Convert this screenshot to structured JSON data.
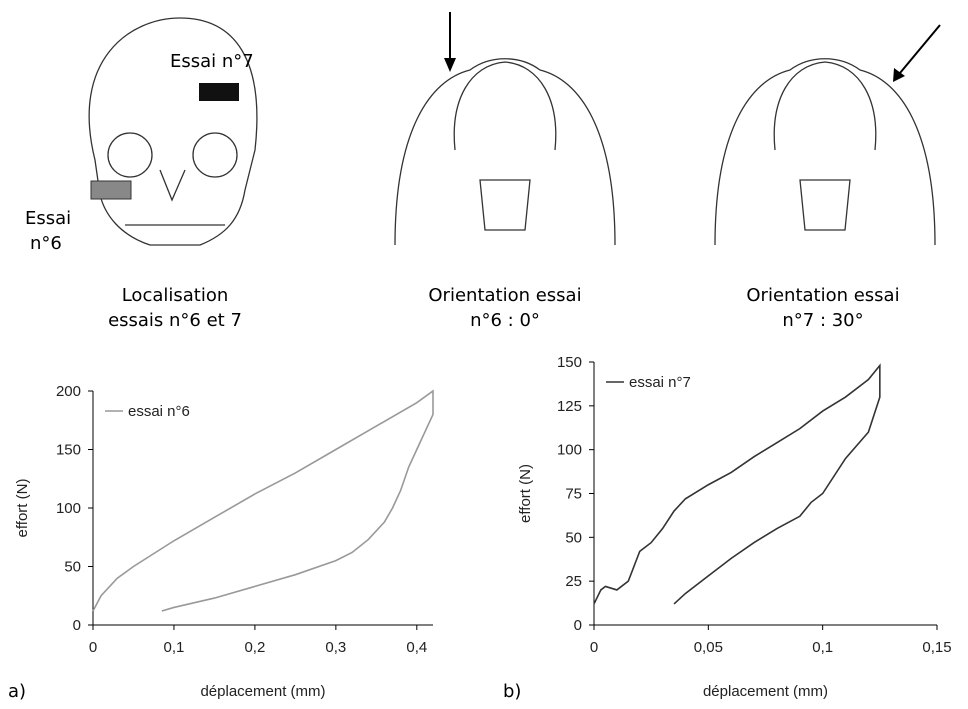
{
  "figure": {
    "labels": {
      "essai7": "Essai n°7",
      "essai6_lines": [
        "Essai",
        "n°6"
      ]
    },
    "captions": [
      [
        "Localisation",
        "essais n°6 et 7"
      ],
      [
        "Orientation essai",
        "n°6 : 0°"
      ],
      [
        "Orientation essai",
        "n°7 : 30°"
      ]
    ]
  },
  "chart_data": [
    {
      "type": "line",
      "panel_label": "a)",
      "x_label": "déplacement (mm)",
      "y_label": "effort (N)",
      "xlim": [
        0,
        0.42
      ],
      "ylim": [
        0,
        200
      ],
      "xticks": [
        0,
        {
          "value": 0.1,
          "label": "0,1"
        },
        {
          "value": 0.2,
          "label": "0,2"
        },
        {
          "value": 0.3,
          "label": "0,3"
        },
        {
          "value": 0.4,
          "label": "0,4"
        }
      ],
      "yticks": [
        0,
        50,
        100,
        150,
        200
      ],
      "series": [
        {
          "name": "essai n°6",
          "color": "#999999",
          "x": [
            0,
            0.01,
            0.03,
            0.05,
            0.1,
            0.15,
            0.2,
            0.25,
            0.3,
            0.35,
            0.4,
            0.42,
            0.42,
            0.41,
            0.4,
            0.39,
            0.38,
            0.37,
            0.36,
            0.34,
            0.32,
            0.3,
            0.25,
            0.2,
            0.15,
            0.1,
            0.085
          ],
          "values": [
            12,
            25,
            40,
            50,
            72,
            92,
            112,
            130,
            150,
            170,
            190,
            200,
            180,
            165,
            150,
            135,
            115,
            100,
            88,
            73,
            62,
            55,
            43,
            33,
            23,
            15,
            12
          ]
        }
      ]
    },
    {
      "type": "line",
      "panel_label": "b)",
      "x_label": "déplacement (mm)",
      "y_label": "effort (N)",
      "xlim": [
        0,
        0.15
      ],
      "ylim": [
        0,
        150
      ],
      "xticks": [
        0,
        {
          "value": 0.05,
          "label": "0,05"
        },
        {
          "value": 0.1,
          "label": "0,1"
        },
        {
          "value": 0.15,
          "label": "0,15"
        }
      ],
      "yticks": [
        0,
        25,
        50,
        75,
        100,
        125,
        150
      ],
      "series": [
        {
          "name": "essai n°7",
          "color": "#333333",
          "x": [
            0,
            0.003,
            0.005,
            0.01,
            0.015,
            0.02,
            0.025,
            0.03,
            0.035,
            0.04,
            0.05,
            0.06,
            0.07,
            0.08,
            0.09,
            0.1,
            0.11,
            0.12,
            0.125,
            0.125,
            0.12,
            0.11,
            0.1,
            0.095,
            0.09,
            0.08,
            0.07,
            0.06,
            0.05,
            0.04,
            0.035
          ],
          "values": [
            12,
            20,
            22,
            20,
            25,
            42,
            47,
            55,
            65,
            72,
            80,
            87,
            96,
            104,
            112,
            122,
            130,
            140,
            148,
            130,
            110,
            95,
            75,
            70,
            62,
            55,
            47,
            38,
            28,
            18,
            12
          ]
        }
      ]
    }
  ]
}
